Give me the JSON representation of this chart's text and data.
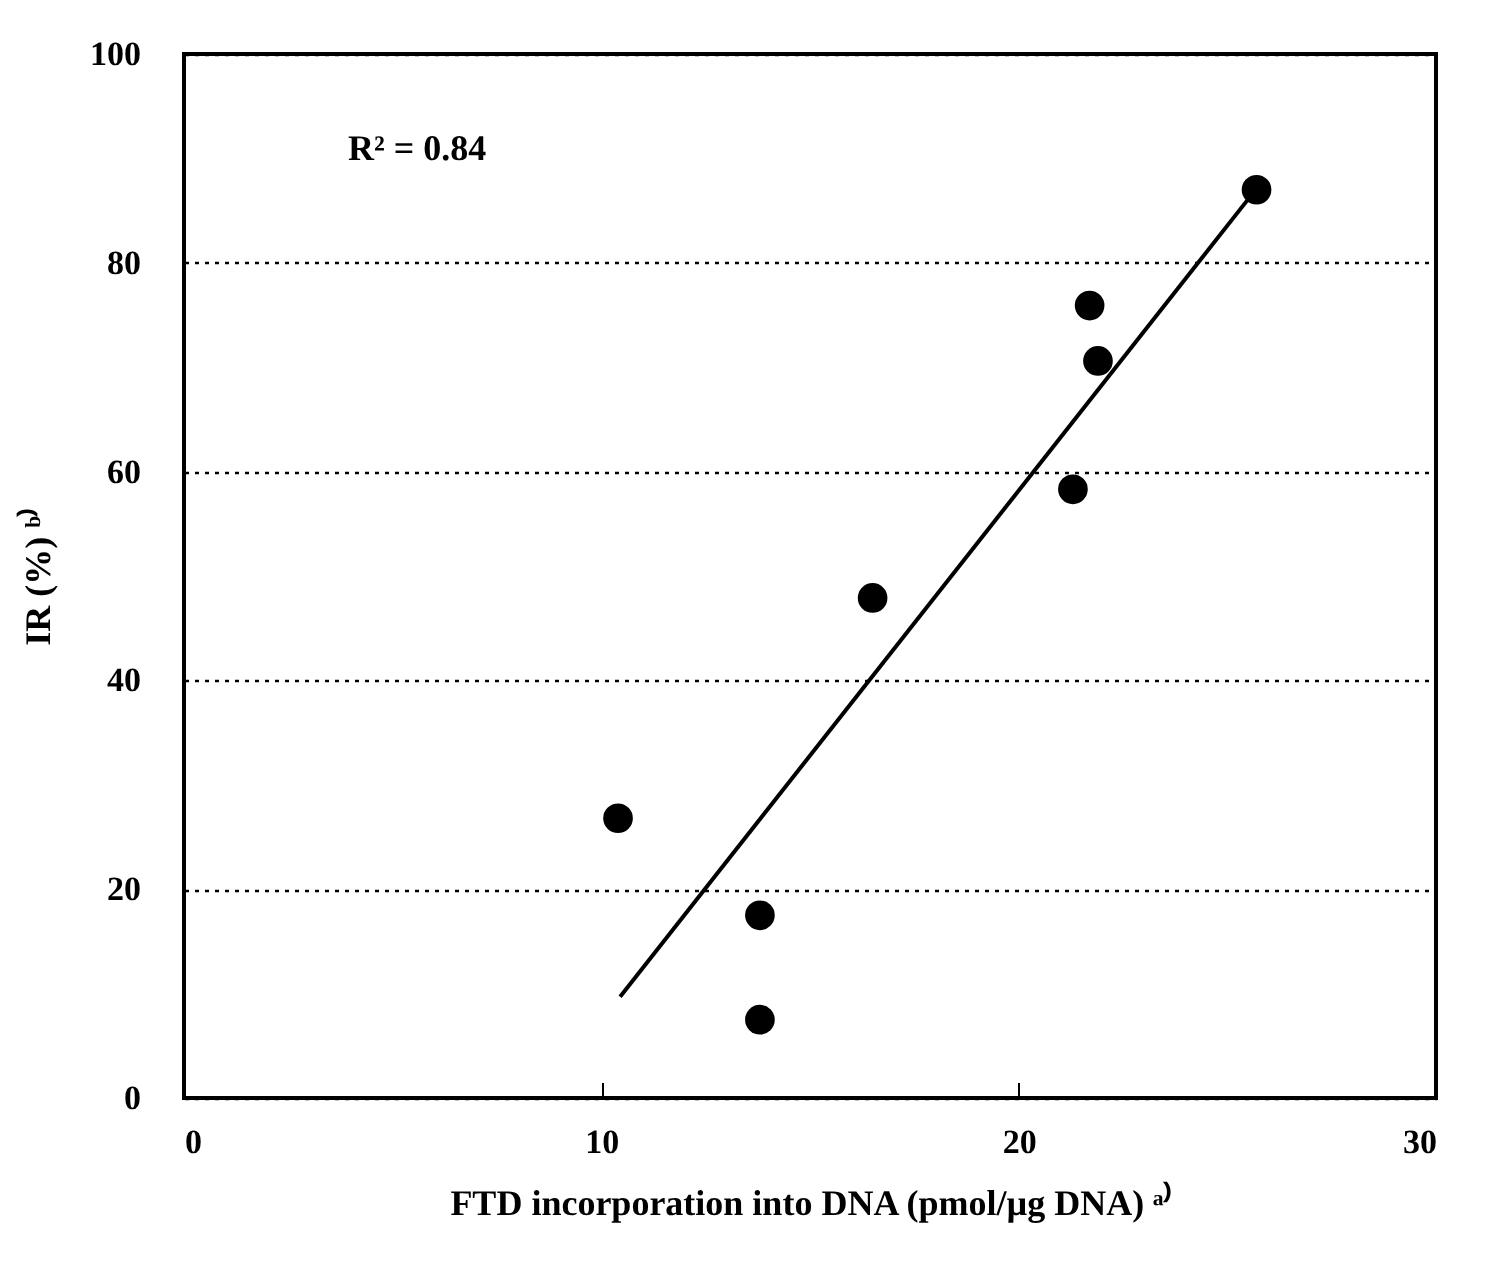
{
  "chart_data": {
    "type": "scatter",
    "xlabel": "FTD incorporation into DNA (pmol/µg DNA) ᵃ⁾",
    "ylabel": "IR (%) ᵇ⁾",
    "annotations": [
      "R² = 0.84"
    ],
    "xlim": [
      0,
      30
    ],
    "xticks": [
      0,
      10,
      20,
      30
    ],
    "ylim": [
      0,
      100
    ],
    "yticks": [
      0,
      20,
      40,
      60,
      80,
      100
    ],
    "grid": "y",
    "series": [
      {
        "marker": "circle",
        "color": "#000000",
        "x": [
          10.4,
          13.8,
          13.8,
          16.5,
          21.3,
          21.7,
          21.9,
          25.7
        ],
        "values": [
          26.8,
          17.5,
          7.5,
          47.9,
          58.3,
          75.9,
          70.6,
          87.0
        ]
      },
      {
        "type": "line",
        "color": "#000000",
        "x": [
          10.45,
          25.5
        ],
        "values": [
          9.7,
          86.1
        ]
      }
    ]
  }
}
